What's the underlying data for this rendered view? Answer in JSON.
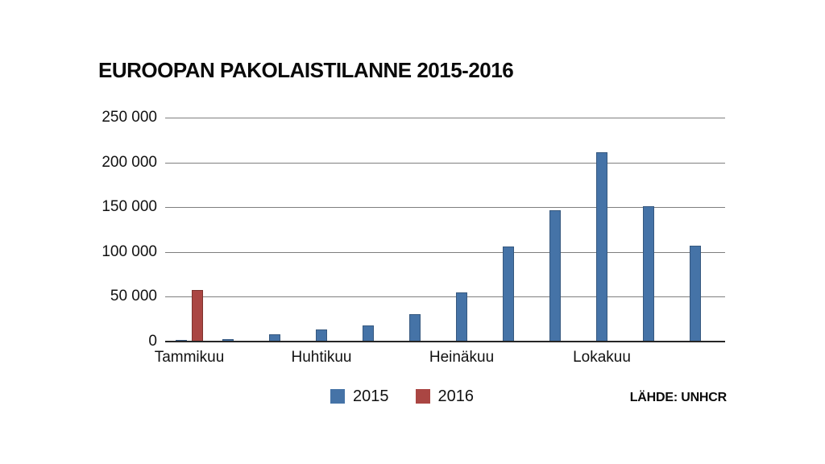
{
  "title": "EUROOPAN PAKOLAISTILANNE 2015-2016",
  "source_label": "LÄHDE: UNHCR",
  "legend": {
    "items": [
      {
        "label": "2015",
        "color": "#4573a7"
      },
      {
        "label": "2016",
        "color": "#aa4643"
      }
    ]
  },
  "colors": {
    "series_2015": "#4573a7",
    "series_2015_border": "#36587f",
    "series_2016": "#aa4643",
    "series_2016_border": "#7e332e",
    "gridline": "#7f7f7f",
    "axis": "#262626",
    "text": "#111111",
    "background": "#ffffff"
  },
  "chart_data": {
    "type": "bar",
    "title": "EUROOPAN PAKOLAISTILANNE 2015-2016",
    "source": "LÄHDE: UNHCR",
    "months_shown": 12,
    "x_tick_labels": [
      "Tammikuu",
      "Huhtikuu",
      "Heinäkuu",
      "Lokakuu"
    ],
    "x_tick_month_index": [
      0,
      3,
      6,
      9
    ],
    "series": [
      {
        "name": "2015",
        "color": "#4573a7",
        "values": [
          2000,
          3000,
          8000,
          13500,
          18000,
          31000,
          55000,
          106000,
          147000,
          211000,
          151000,
          107000
        ]
      },
      {
        "name": "2016",
        "color": "#aa4643",
        "values": [
          58000,
          null,
          null,
          null,
          null,
          null,
          null,
          null,
          null,
          null,
          null,
          null
        ]
      }
    ],
    "ylim": [
      0,
      250000
    ],
    "y_ticks": [
      0,
      50000,
      100000,
      150000,
      200000,
      250000
    ],
    "y_tick_labels": [
      "0",
      "50 000",
      "100 000",
      "150 000",
      "200 000",
      "250 000"
    ],
    "grid": true,
    "legend_position": "bottom"
  }
}
